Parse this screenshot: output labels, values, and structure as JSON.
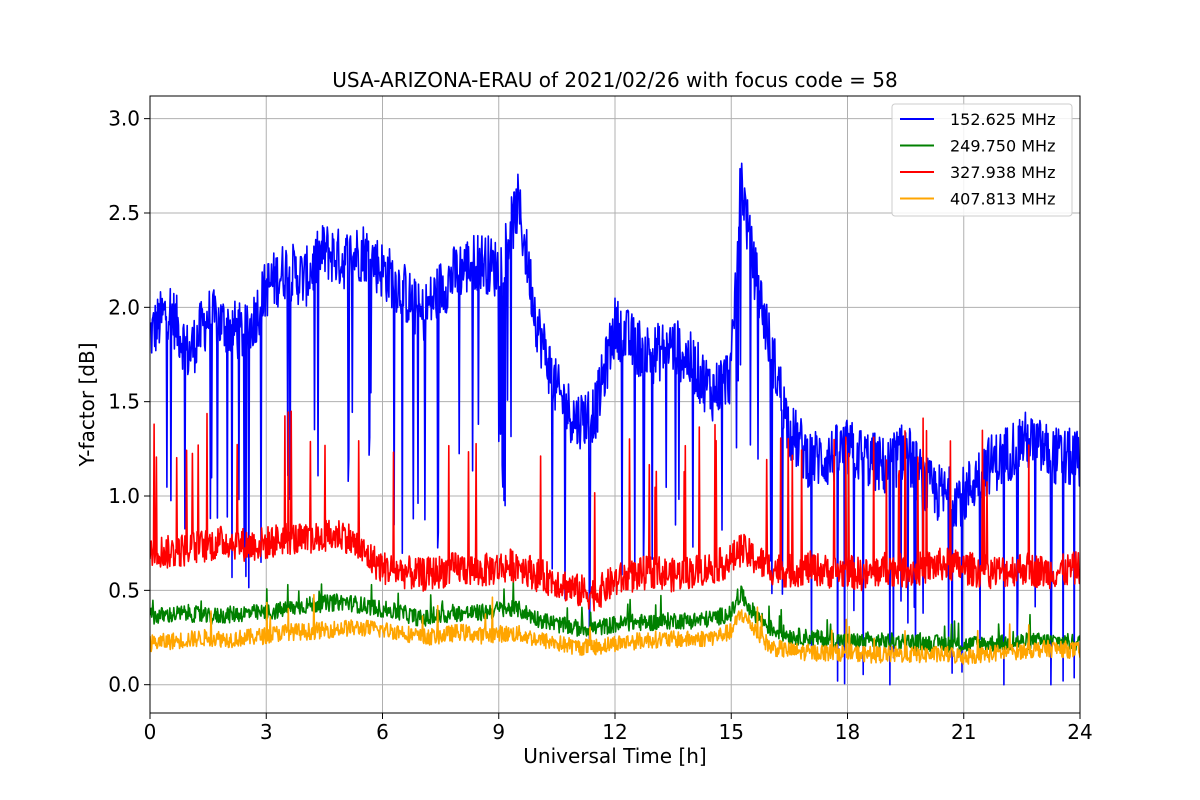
{
  "chart_data": {
    "type": "line",
    "title": "USA-ARIZONA-ERAU of 2021/02/26 with focus code = 58",
    "xlabel": "Universal Time [h]",
    "ylabel": "Y-factor [dB]",
    "xlim": [
      0,
      24
    ],
    "ylim": [
      -0.15,
      3.12
    ],
    "xticks": [
      0,
      3,
      6,
      9,
      12,
      15,
      18,
      21,
      24
    ],
    "xtick_labels": [
      "0",
      "3",
      "6",
      "9",
      "12",
      "15",
      "18",
      "21",
      "24"
    ],
    "yticks": [
      0.0,
      0.5,
      1.0,
      1.5,
      2.0,
      2.5,
      3.0
    ],
    "ytick_labels": [
      "0.0",
      "0.5",
      "1.0",
      "1.5",
      "2.0",
      "2.5",
      "3.0"
    ],
    "grid": true,
    "legend_position": "top-right",
    "series": [
      {
        "name": "152.625 MHz",
        "color": "#0000ff",
        "x": [
          0,
          0.5,
          1,
          1.5,
          2,
          2.5,
          3,
          3.5,
          4,
          4.5,
          5,
          5.5,
          6,
          6.5,
          7,
          7.5,
          8,
          8.5,
          9,
          9.5,
          10,
          10.5,
          11,
          11.5,
          12,
          12.5,
          13,
          13.5,
          14,
          14.5,
          15,
          15.25,
          15.5,
          16,
          16.5,
          17,
          17.5,
          18,
          18.5,
          19,
          19.5,
          20,
          20.5,
          21,
          21.5,
          22,
          22.5,
          23,
          23.5,
          24
        ],
        "y": [
          1.85,
          2.0,
          1.75,
          1.95,
          1.9,
          1.85,
          2.1,
          2.2,
          2.15,
          2.3,
          2.25,
          2.3,
          2.2,
          2.1,
          1.95,
          2.1,
          2.2,
          2.25,
          2.2,
          2.55,
          1.9,
          1.55,
          1.4,
          1.45,
          1.9,
          1.8,
          1.75,
          1.8,
          1.7,
          1.55,
          1.65,
          2.7,
          2.3,
          1.8,
          1.35,
          1.2,
          1.2,
          1.25,
          1.2,
          1.15,
          1.25,
          1.05,
          1.0,
          1.0,
          1.15,
          1.2,
          1.3,
          1.25,
          1.2,
          1.2
        ]
      },
      {
        "name": "249.750 MHz",
        "color": "#008000",
        "x": [
          0,
          0.5,
          1,
          1.5,
          2,
          2.5,
          3,
          3.5,
          4,
          4.5,
          5,
          5.5,
          6,
          6.5,
          7,
          7.5,
          8,
          8.5,
          9,
          9.5,
          10,
          10.5,
          11,
          11.5,
          12,
          12.5,
          13,
          13.5,
          14,
          14.5,
          15,
          15.25,
          15.5,
          16,
          16.5,
          17,
          17.5,
          18,
          18.5,
          19,
          19.5,
          20,
          20.5,
          21,
          21.5,
          22,
          22.5,
          23,
          23.5,
          24
        ],
        "y": [
          0.36,
          0.37,
          0.38,
          0.36,
          0.37,
          0.38,
          0.38,
          0.4,
          0.42,
          0.43,
          0.44,
          0.42,
          0.4,
          0.38,
          0.35,
          0.36,
          0.38,
          0.38,
          0.4,
          0.4,
          0.35,
          0.32,
          0.3,
          0.3,
          0.32,
          0.33,
          0.33,
          0.34,
          0.34,
          0.35,
          0.38,
          0.48,
          0.4,
          0.3,
          0.26,
          0.25,
          0.24,
          0.23,
          0.23,
          0.23,
          0.23,
          0.22,
          0.22,
          0.21,
          0.22,
          0.22,
          0.23,
          0.23,
          0.23,
          0.22
        ]
      },
      {
        "name": "327.938 MHz",
        "color": "#ff0000",
        "x": [
          0,
          0.5,
          1,
          1.5,
          2,
          2.5,
          3,
          3.5,
          4,
          4.5,
          5,
          5.5,
          6,
          6.5,
          7,
          7.5,
          8,
          8.5,
          9,
          9.5,
          10,
          10.5,
          11,
          11.5,
          12,
          12.5,
          13,
          13.5,
          14,
          14.5,
          15,
          15.25,
          15.5,
          16,
          16.5,
          17,
          17.5,
          18,
          18.5,
          19,
          19.5,
          20,
          20.5,
          21,
          21.5,
          22,
          22.5,
          23,
          23.5,
          24
        ],
        "y": [
          0.72,
          0.7,
          0.72,
          0.74,
          0.76,
          0.74,
          0.75,
          0.78,
          0.76,
          0.78,
          0.8,
          0.7,
          0.62,
          0.6,
          0.58,
          0.6,
          0.62,
          0.6,
          0.62,
          0.64,
          0.58,
          0.55,
          0.5,
          0.48,
          0.55,
          0.58,
          0.6,
          0.58,
          0.6,
          0.62,
          0.66,
          0.72,
          0.68,
          0.62,
          0.6,
          0.62,
          0.6,
          0.6,
          0.58,
          0.62,
          0.6,
          0.62,
          0.64,
          0.62,
          0.6,
          0.6,
          0.62,
          0.6,
          0.6,
          0.62
        ]
      },
      {
        "name": "407.813 MHz",
        "color": "#ffa500",
        "x": [
          0,
          0.5,
          1,
          1.5,
          2,
          2.5,
          3,
          3.5,
          4,
          4.5,
          5,
          5.5,
          6,
          6.5,
          7,
          7.5,
          8,
          8.5,
          9,
          9.5,
          10,
          10.5,
          11,
          11.5,
          12,
          12.5,
          13,
          13.5,
          14,
          14.5,
          15,
          15.25,
          15.5,
          16,
          16.5,
          17,
          17.5,
          18,
          18.5,
          19,
          19.5,
          20,
          20.5,
          21,
          21.5,
          22,
          22.5,
          23,
          23.5,
          24
        ],
        "y": [
          0.22,
          0.23,
          0.24,
          0.25,
          0.24,
          0.25,
          0.26,
          0.28,
          0.28,
          0.29,
          0.3,
          0.3,
          0.29,
          0.28,
          0.25,
          0.26,
          0.28,
          0.26,
          0.27,
          0.27,
          0.24,
          0.22,
          0.2,
          0.2,
          0.22,
          0.23,
          0.24,
          0.24,
          0.24,
          0.25,
          0.28,
          0.38,
          0.32,
          0.2,
          0.18,
          0.17,
          0.17,
          0.17,
          0.16,
          0.16,
          0.16,
          0.16,
          0.16,
          0.15,
          0.16,
          0.17,
          0.18,
          0.19,
          0.19,
          0.18
        ]
      }
    ]
  }
}
